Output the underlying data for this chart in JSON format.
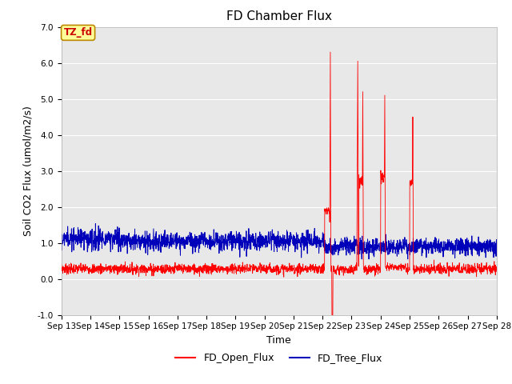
{
  "title": "FD Chamber Flux",
  "xlabel": "Time",
  "ylabel": "Soil CO2 Flux (umol/m2/s)",
  "ylim": [
    -1.0,
    7.0
  ],
  "yticks": [
    -1.0,
    0.0,
    1.0,
    2.0,
    3.0,
    4.0,
    5.0,
    6.0,
    7.0
  ],
  "xtick_labels": [
    "Sep 13",
    "Sep 14",
    "Sep 15",
    "Sep 16",
    "Sep 17",
    "Sep 18",
    "Sep 19",
    "Sep 20",
    "Sep 21",
    "Sep 22",
    "Sep 23",
    "Sep 24",
    "Sep 25",
    "Sep 26",
    "Sep 27",
    "Sep 28"
  ],
  "open_flux_color": "#FF0000",
  "tree_flux_color": "#0000BB",
  "background_color": "#E8E8E8",
  "grid_color": "#FFFFFF",
  "annotation_text": "TZ_fd",
  "annotation_bg": "#FFFF99",
  "annotation_border": "#BB8800",
  "annotation_text_color": "#CC0000",
  "legend_labels": [
    "FD_Open_Flux",
    "FD_Tree_Flux"
  ],
  "title_fontsize": 11,
  "label_fontsize": 9,
  "tick_fontsize": 7.5
}
